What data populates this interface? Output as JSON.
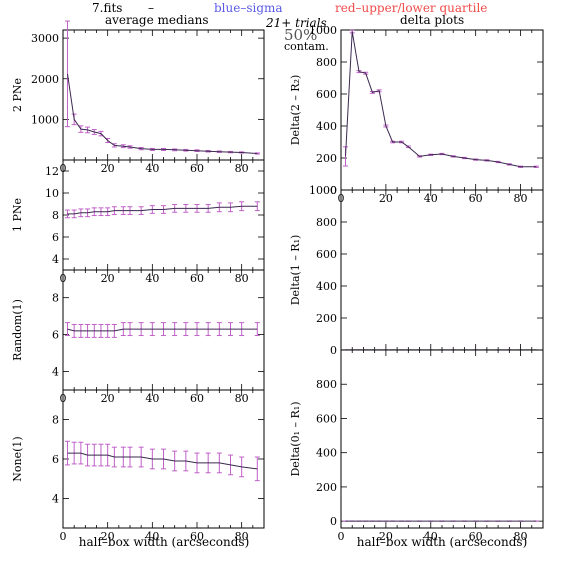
{
  "header": {
    "file": "7.fits",
    "dash": "–",
    "blue_label": "blue–sigma",
    "red_label": "red–upper/lower quartile",
    "trials": "21+ trials",
    "contam_pct": "50%",
    "contam": "contam.",
    "left_title": "average medians",
    "right_title": "delta plots"
  },
  "colors": {
    "blue": "#5a5ae6",
    "red": "#f04a4a",
    "magenta": "#c060c8",
    "line": "#3c2850",
    "axis": "#000000"
  },
  "chart_data": [
    {
      "type": "line",
      "id": "2pne",
      "ylabel": "2 PNe",
      "xlim": [
        0,
        90
      ],
      "ylim": [
        0,
        3200
      ],
      "xticks": [
        "0",
        "20",
        "40",
        "60",
        "80"
      ],
      "yticks": [
        "1000",
        "2000",
        "3000"
      ],
      "x": [
        2,
        5,
        8,
        11,
        14,
        17,
        20,
        23,
        27,
        30,
        35,
        40,
        45,
        50,
        55,
        60,
        65,
        70,
        75,
        80,
        87
      ],
      "y": [
        2120,
        1000,
        760,
        740,
        690,
        650,
        480,
        360,
        340,
        320,
        280,
        260,
        260,
        250,
        240,
        230,
        215,
        205,
        195,
        185,
        160
      ],
      "err": [
        1300,
        130,
        80,
        70,
        60,
        55,
        50,
        40,
        35,
        30,
        28,
        25,
        25,
        22,
        20,
        20,
        18,
        18,
        16,
        15,
        14
      ]
    },
    {
      "type": "line",
      "id": "delta2",
      "ylabel": "Delta(2 – R₂)",
      "xlim": [
        0,
        90
      ],
      "ylim": [
        0,
        1000
      ],
      "xticks": [
        "0",
        "20",
        "40",
        "60",
        "80"
      ],
      "yticks": [
        "0",
        "200",
        "400",
        "600",
        "800",
        "1000"
      ],
      "x": [
        2,
        5,
        8,
        11,
        14,
        17,
        20,
        23,
        27,
        30,
        35,
        40,
        45,
        50,
        55,
        60,
        65,
        70,
        75,
        80,
        87
      ],
      "y": [
        210,
        990,
        740,
        730,
        610,
        620,
        400,
        300,
        300,
        270,
        210,
        220,
        225,
        210,
        200,
        190,
        185,
        175,
        160,
        145,
        145
      ],
      "err": [
        60,
        8,
        6,
        6,
        6,
        6,
        6,
        5,
        5,
        5,
        4,
        4,
        4,
        4,
        4,
        4,
        4,
        4,
        4,
        4,
        4
      ]
    },
    {
      "type": "line",
      "id": "1pne",
      "ylabel": "1 PNe",
      "xlim": [
        0,
        90
      ],
      "ylim": [
        3,
        13
      ],
      "xticks": [
        "0",
        "20",
        "40",
        "60",
        "80"
      ],
      "yticks": [
        "4",
        "6",
        "8",
        "10",
        "12"
      ],
      "x": [
        2,
        5,
        8,
        11,
        14,
        17,
        20,
        23,
        27,
        30,
        35,
        40,
        45,
        50,
        55,
        60,
        65,
        70,
        75,
        80,
        87
      ],
      "y": [
        8.1,
        8.1,
        8.2,
        8.2,
        8.3,
        8.3,
        8.3,
        8.4,
        8.4,
        8.4,
        8.4,
        8.5,
        8.5,
        8.6,
        8.6,
        8.6,
        8.6,
        8.7,
        8.7,
        8.8,
        8.8
      ],
      "err": [
        0.35,
        0.35,
        0.35,
        0.35,
        0.35,
        0.35,
        0.35,
        0.35,
        0.35,
        0.35,
        0.35,
        0.35,
        0.35,
        0.35,
        0.35,
        0.35,
        0.35,
        0.4,
        0.4,
        0.4,
        0.4
      ]
    },
    {
      "type": "line",
      "id": "delta1",
      "ylabel": "Delta(1 – R₁)",
      "xlim": [
        0,
        90
      ],
      "ylim": [
        0,
        1000
      ],
      "xticks": [],
      "yticks": [
        "0",
        "200",
        "400",
        "600",
        "800",
        "1000"
      ],
      "x": [
        2,
        5,
        8,
        11,
        14,
        17,
        20,
        23,
        27,
        30,
        35,
        40,
        45,
        50,
        55,
        60,
        65,
        70,
        75,
        80,
        87
      ],
      "y": [
        0.4,
        0.4,
        0.4,
        0.4,
        0.4,
        0.4,
        0.4,
        0.4,
        0.4,
        0.4,
        0.4,
        0.4,
        0.4,
        0.4,
        0.4,
        0.4,
        0.4,
        0.4,
        0.4,
        0.4,
        0.4
      ],
      "err": [
        0.2,
        0.2,
        0.2,
        0.2,
        0.2,
        0.2,
        0.2,
        0.2,
        0.2,
        0.2,
        0.2,
        0.2,
        0.2,
        0.2,
        0.2,
        0.2,
        0.2,
        0.2,
        0.2,
        0.2,
        0.2
      ]
    },
    {
      "type": "line",
      "id": "random1",
      "ylabel": "Random(1)",
      "xlim": [
        0,
        90
      ],
      "ylim": [
        3,
        9.5
      ],
      "xticks": [
        "0",
        "20",
        "40",
        "60",
        "80"
      ],
      "yticks": [
        "4",
        "6",
        "8"
      ],
      "x": [
        2,
        5,
        8,
        11,
        14,
        17,
        20,
        23,
        27,
        30,
        35,
        40,
        45,
        50,
        55,
        60,
        65,
        70,
        75,
        80,
        87
      ],
      "y": [
        6.3,
        6.2,
        6.2,
        6.2,
        6.2,
        6.2,
        6.2,
        6.2,
        6.3,
        6.3,
        6.3,
        6.3,
        6.3,
        6.3,
        6.3,
        6.3,
        6.3,
        6.3,
        6.3,
        6.3,
        6.3
      ],
      "err": [
        0.35,
        0.35,
        0.35,
        0.35,
        0.35,
        0.35,
        0.35,
        0.35,
        0.35,
        0.35,
        0.35,
        0.35,
        0.35,
        0.35,
        0.35,
        0.35,
        0.35,
        0.35,
        0.35,
        0.35,
        0.35
      ]
    },
    {
      "type": "line",
      "id": "none1",
      "ylabel": "None(1)",
      "xlim": [
        0,
        90
      ],
      "ylim": [
        2.5,
        9.5
      ],
      "xticks": [
        "0",
        "20",
        "40",
        "60",
        "80"
      ],
      "yticks": [
        "4",
        "6",
        "8"
      ],
      "x": [
        2,
        5,
        8,
        11,
        14,
        17,
        20,
        23,
        27,
        30,
        35,
        40,
        45,
        50,
        55,
        60,
        65,
        70,
        75,
        80,
        87
      ],
      "y": [
        6.3,
        6.3,
        6.3,
        6.2,
        6.2,
        6.2,
        6.2,
        6.1,
        6.1,
        6.1,
        6.1,
        6.0,
        6.0,
        5.9,
        5.9,
        5.8,
        5.8,
        5.8,
        5.7,
        5.6,
        5.5
      ],
      "err": [
        0.6,
        0.55,
        0.55,
        0.55,
        0.55,
        0.55,
        0.55,
        0.5,
        0.5,
        0.5,
        0.5,
        0.5,
        0.5,
        0.5,
        0.5,
        0.5,
        0.5,
        0.5,
        0.5,
        0.5,
        0.6
      ]
    },
    {
      "type": "line",
      "id": "delta0",
      "ylabel": "Delta(0₁ – R₁)",
      "xlim": [
        0,
        90
      ],
      "ylim": [
        -40,
        1000
      ],
      "xticks": [
        "0",
        "20",
        "40",
        "60",
        "80"
      ],
      "yticks": [
        "0",
        "200",
        "400",
        "600",
        "800"
      ],
      "x": [
        2,
        5,
        8,
        11,
        14,
        17,
        20,
        23,
        27,
        30,
        35,
        40,
        45,
        50,
        55,
        60,
        65,
        70,
        75,
        80,
        87
      ],
      "y": [
        0.3,
        0.3,
        0.3,
        0.3,
        0.3,
        0.3,
        0.3,
        0.3,
        0.3,
        0.3,
        0.3,
        0.3,
        0.3,
        0.3,
        0.3,
        0.3,
        0.3,
        0.3,
        0.3,
        0.3,
        0.3
      ],
      "err": [
        0.2,
        0.2,
        0.2,
        0.2,
        0.2,
        0.2,
        0.2,
        0.2,
        0.2,
        0.2,
        0.2,
        0.2,
        0.2,
        0.2,
        0.2,
        0.2,
        0.2,
        0.2,
        0.2,
        0.2,
        0.2
      ]
    }
  ],
  "xlabel": "half–box width (arcseconds)"
}
